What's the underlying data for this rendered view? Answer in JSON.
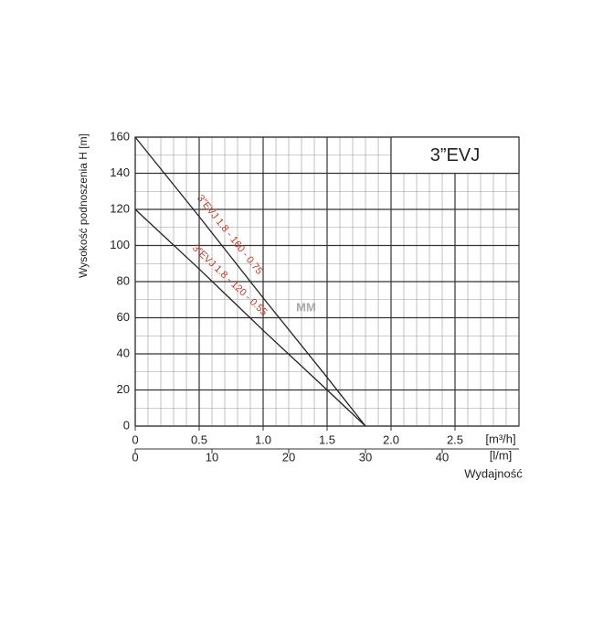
{
  "chart_data": {
    "type": "line",
    "title": "3”EVJ",
    "watermark": "MM",
    "y_label": "Wysokość podnoszenia H [m]",
    "x_label": "Wydajność",
    "x_unit": "[m³/h]",
    "x2_unit": "[l/m]",
    "x": [
      0,
      0.5,
      1.0,
      1.5,
      1.8
    ],
    "series": [
      {
        "name": "3”EVJ 1.8 - 160 - 0.75",
        "color": "#222222",
        "label_color": "#c0392b",
        "values": [
          160,
          116,
          71,
          27,
          0
        ]
      },
      {
        "name": "3”EVJ 1.8 - 120 - 0.55",
        "color": "#222222",
        "label_color": "#c0392b",
        "values": [
          120,
          87,
          53,
          20,
          0
        ]
      }
    ],
    "xlim": [
      0,
      3
    ],
    "xticks": [
      0,
      0.5,
      {
        "value": 1,
        "label": "1.0"
      },
      1.5,
      {
        "value": 2,
        "label": "2.0"
      },
      2.5
    ],
    "x2lim": [
      0,
      50
    ],
    "x2ticks": [
      0,
      10,
      20,
      30,
      40
    ],
    "ylim": [
      0,
      160
    ],
    "yticks": [
      0,
      20,
      40,
      60,
      80,
      100,
      120,
      140,
      160
    ],
    "grid": true
  }
}
